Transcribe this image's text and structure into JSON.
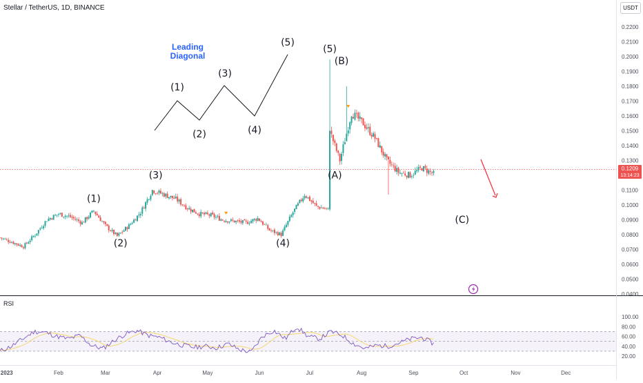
{
  "header": {
    "title": "Stellar / TetherUS, 1D, BINANCE",
    "currency": "USDT"
  },
  "price_pane": {
    "last_price": "0.1209",
    "countdown": "13:14:23",
    "annotation_title": [
      "Leading",
      "Diagonal"
    ],
    "y_ticks": [
      "0.2200",
      "0.2100",
      "0.2000",
      "0.1900",
      "0.1800",
      "0.1700",
      "0.1600",
      "0.1500",
      "0.1400",
      "0.1300",
      "0.1200",
      "0.1100",
      "0.1000",
      "0.0900",
      "0.0800",
      "0.0700",
      "0.0600",
      "0.0500",
      "0.0400"
    ]
  },
  "rsi_pane": {
    "label": "RSI",
    "y_ticks": [
      "100.00",
      "80.00",
      "60.00",
      "40.00",
      "20.00"
    ]
  },
  "x_axis": {
    "labels": [
      "2023",
      "Feb",
      "Mar",
      "Apr",
      "May",
      "Jun",
      "Jul",
      "Aug",
      "Sep",
      "Oct",
      "Nov",
      "Dec"
    ]
  },
  "chart_data": [
    {
      "type": "candlestick",
      "title": "Stellar / TetherUS, 1D, BINANCE",
      "ylabel": "USDT",
      "ylim": [
        0.035,
        0.225
      ],
      "x_range": [
        "2022-12-28",
        "2023-12-31"
      ],
      "ohlc_weekly_approx": [
        {
          "date": "2022-12-28",
          "close": 0.078
        },
        {
          "date": "2023-01-04",
          "close": 0.075
        },
        {
          "date": "2023-01-11",
          "close": 0.072
        },
        {
          "date": "2023-01-18",
          "close": 0.08
        },
        {
          "date": "2023-01-25",
          "close": 0.09
        },
        {
          "date": "2023-02-01",
          "close": 0.094
        },
        {
          "date": "2023-02-08",
          "close": 0.092
        },
        {
          "date": "2023-02-15",
          "close": 0.088
        },
        {
          "date": "2023-02-22",
          "close": 0.096
        },
        {
          "date": "2023-03-01",
          "close": 0.086
        },
        {
          "date": "2023-03-08",
          "close": 0.079
        },
        {
          "date": "2023-03-15",
          "close": 0.086
        },
        {
          "date": "2023-03-22",
          "close": 0.095
        },
        {
          "date": "2023-03-29",
          "close": 0.11
        },
        {
          "date": "2023-04-05",
          "close": 0.107
        },
        {
          "date": "2023-04-12",
          "close": 0.104
        },
        {
          "date": "2023-04-19",
          "close": 0.098
        },
        {
          "date": "2023-04-26",
          "close": 0.094
        },
        {
          "date": "2023-05-03",
          "close": 0.093
        },
        {
          "date": "2023-05-10",
          "close": 0.09
        },
        {
          "date": "2023-05-17",
          "close": 0.089
        },
        {
          "date": "2023-05-24",
          "close": 0.088
        },
        {
          "date": "2023-05-31",
          "close": 0.091
        },
        {
          "date": "2023-06-07",
          "close": 0.083
        },
        {
          "date": "2023-06-14",
          "close": 0.08
        },
        {
          "date": "2023-06-21",
          "close": 0.095
        },
        {
          "date": "2023-06-28",
          "close": 0.107
        },
        {
          "date": "2023-07-05",
          "close": 0.099
        },
        {
          "date": "2023-07-12",
          "close": 0.097
        },
        {
          "date": "2023-07-13",
          "close": 0.15
        },
        {
          "date": "2023-07-19",
          "close": 0.13
        },
        {
          "date": "2023-07-26",
          "close": 0.162
        },
        {
          "date": "2023-08-02",
          "close": 0.155
        },
        {
          "date": "2023-08-09",
          "close": 0.145
        },
        {
          "date": "2023-08-16",
          "close": 0.13
        },
        {
          "date": "2023-08-23",
          "close": 0.122
        },
        {
          "date": "2023-08-30",
          "close": 0.12
        },
        {
          "date": "2023-09-06",
          "close": 0.125
        },
        {
          "date": "2023-09-13",
          "close": 0.1209
        }
      ],
      "projection": {
        "target_label": "(C)"
      },
      "wave_labels": [
        {
          "text": "(1)",
          "date": "2023-02-22",
          "price": 0.102
        },
        {
          "text": "(2)",
          "date": "2023-03-10",
          "price": 0.072
        },
        {
          "text": "(3)",
          "date": "2023-03-31",
          "price": 0.118
        },
        {
          "text": "(4)",
          "date": "2023-06-15",
          "price": 0.072
        },
        {
          "text": "(5)",
          "date": "2023-07-13",
          "price": 0.203
        },
        {
          "text": "(B)",
          "date": "2023-07-20",
          "price": 0.195
        },
        {
          "text": "(A)",
          "date": "2023-07-16",
          "price": 0.118
        },
        {
          "text": "(C)",
          "date": "2023-09-30",
          "price": 0.088
        }
      ],
      "diagonal_schematic_labels": [
        "(1)",
        "(2)",
        "(3)",
        "(4)",
        "(5)"
      ]
    },
    {
      "type": "line",
      "title": "RSI",
      "ylim": [
        10,
        100
      ],
      "bands": [
        30,
        50,
        70
      ],
      "series": [
        {
          "name": "RSI",
          "color": "#7e57c2"
        },
        {
          "name": "",
          "color": "#f5d76e"
        }
      ],
      "rsi_weekly_approx": [
        30,
        40,
        55,
        70,
        68,
        60,
        55,
        62,
        42,
        35,
        52,
        65,
        72,
        62,
        58,
        48,
        42,
        38,
        40,
        37,
        45,
        33,
        28,
        60,
        72,
        55,
        80,
        60,
        55,
        70,
        62,
        45,
        35,
        42,
        40,
        47,
        55,
        58,
        45
      ]
    }
  ],
  "colors": {
    "up": "#26a69a",
    "down": "#ef5350",
    "rsi_line": "#7e57c2",
    "rsi_ma": "#f5d76e",
    "accent": "#2962ff",
    "badge": "#ef5350"
  }
}
